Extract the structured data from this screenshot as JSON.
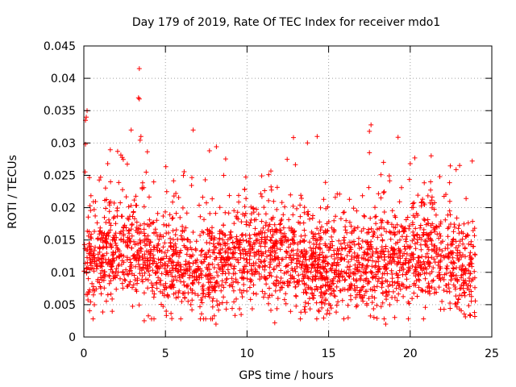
{
  "chart_data": {
    "type": "scatter",
    "title": "Day 179 of 2019, Rate Of TEC Index for receiver mdo1",
    "xlabel": "GPS time / hours",
    "ylabel": "ROTI / TECUs",
    "xlim": [
      0,
      25
    ],
    "ylim": [
      0,
      0.045
    ],
    "x_ticks": [
      0,
      5,
      10,
      15,
      20,
      25
    ],
    "x_tick_labels": [
      "0",
      "5",
      "10",
      "15",
      "20",
      "25"
    ],
    "y_ticks": [
      0,
      0.005,
      0.01,
      0.015,
      0.02,
      0.025,
      0.03,
      0.035,
      0.04,
      0.045
    ],
    "y_tick_labels": [
      "0",
      "0.005",
      "0.01",
      "0.015",
      "0.02",
      "0.025",
      "0.03",
      "0.035",
      "0.04",
      "0.045"
    ],
    "grid": true,
    "marker": "+",
    "series_color": "#ff0000",
    "point_count": 2600,
    "data_range": {
      "x": [
        0,
        24
      ],
      "y": [
        0.002,
        0.0415
      ]
    },
    "notable_points": [
      {
        "x": 3.4,
        "y": 0.0415
      },
      {
        "x": 3.4,
        "y": 0.0368
      },
      {
        "x": 3.35,
        "y": 0.037
      },
      {
        "x": 0.2,
        "y": 0.035
      },
      {
        "x": 0.15,
        "y": 0.034
      },
      {
        "x": 0.1,
        "y": 0.0335
      },
      {
        "x": 2.9,
        "y": 0.032
      },
      {
        "x": 6.7,
        "y": 0.032
      },
      {
        "x": 17.6,
        "y": 0.0328
      },
      {
        "x": 17.5,
        "y": 0.0318
      },
      {
        "x": 14.3,
        "y": 0.031
      },
      {
        "x": 13.7,
        "y": 0.03
      },
      {
        "x": 17.5,
        "y": 0.0285
      },
      {
        "x": 7.7,
        "y": 0.0288
      },
      {
        "x": 0.1,
        "y": 0.0298
      },
      {
        "x": 3.5,
        "y": 0.031
      },
      {
        "x": 23.8,
        "y": 0.0272
      },
      {
        "x": 20.0,
        "y": 0.0268
      },
      {
        "x": 3.7,
        "y": 0.0025
      },
      {
        "x": 4.3,
        "y": 0.0028
      },
      {
        "x": 8.1,
        "y": 0.002
      },
      {
        "x": 11.7,
        "y": 0.0022
      },
      {
        "x": 18.5,
        "y": 0.002
      }
    ]
  }
}
